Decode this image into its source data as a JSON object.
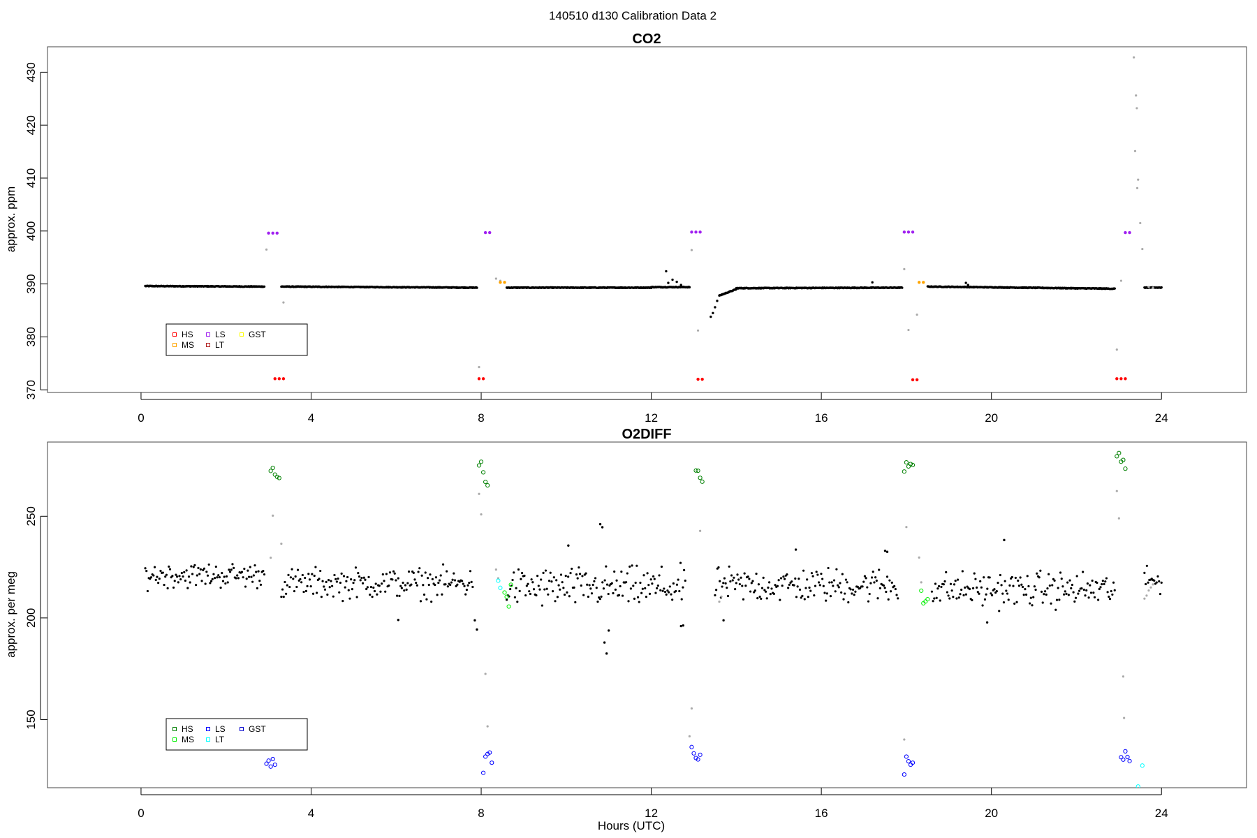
{
  "figure": {
    "suptitle": "140510   d130   Calibration Data 2"
  },
  "colors": {
    "ambient": "#000000",
    "flag": "#aaaaaa",
    "co2_HS": "#ff0000",
    "co2_MS": "#ffa500",
    "co2_LS": "#a020f0",
    "co2_LT": "#b22222",
    "co2_GST": "#ffff00",
    "o2_HS": "#008000",
    "o2_MS": "#00ee00",
    "o2_LS": "#0000ff",
    "o2_LT": "#00ffff",
    "o2_GST": "#0000cd"
  },
  "chart_data": [
    {
      "type": "scatter",
      "title": "CO2",
      "ylabel": "approx. ppm",
      "xlabel": "",
      "xlim": [
        -2.2,
        26.0
      ],
      "ylim": [
        369.5,
        434.8
      ],
      "xticks": [
        0,
        4,
        8,
        12,
        16,
        20,
        24
      ],
      "yticks": [
        370,
        380,
        390,
        400,
        410,
        420,
        430
      ],
      "grid": false,
      "legend": {
        "placement": "bottom-left",
        "entries": [
          {
            "label": "HS",
            "color": "#ff0000"
          },
          {
            "label": "MS",
            "color": "#ffa500"
          },
          {
            "label": "LS",
            "color": "#a020f0"
          },
          {
            "label": "LT",
            "color": "#b22222"
          },
          {
            "label": "GST",
            "color": "#ffff00"
          }
        ]
      },
      "ambient_segments": [
        {
          "x": [
            0.1,
            2.9
          ],
          "y": [
            389.6,
            389.5
          ]
        },
        {
          "x": [
            3.3,
            7.9
          ],
          "y": [
            389.5,
            389.3
          ]
        },
        {
          "x": [
            8.6,
            12.0
          ],
          "y": [
            389.3,
            389.3
          ]
        },
        {
          "x": [
            12.0,
            12.9
          ],
          "y": [
            389.4,
            389.4
          ]
        },
        {
          "x": [
            13.6,
            14.0
          ],
          "y": [
            387.8,
            389.0
          ]
        },
        {
          "x": [
            14.0,
            17.9
          ],
          "y": [
            389.2,
            389.3
          ]
        },
        {
          "x": [
            18.5,
            22.9
          ],
          "y": [
            389.5,
            389.1
          ]
        },
        {
          "x": [
            23.6,
            24.0
          ],
          "y": [
            389.3,
            389.3
          ]
        }
      ],
      "ambient_points": [
        {
          "x": 12.35,
          "y": 392.4
        },
        {
          "x": 12.4,
          "y": 390.2
        },
        {
          "x": 12.5,
          "y": 390.8
        },
        {
          "x": 12.6,
          "y": 390.4
        },
        {
          "x": 12.7,
          "y": 389.8
        },
        {
          "x": 17.2,
          "y": 390.3
        },
        {
          "x": 19.4,
          "y": 390.2
        },
        {
          "x": 19.45,
          "y": 389.8
        },
        {
          "x": 13.4,
          "y": 383.8
        },
        {
          "x": 13.45,
          "y": 384.5
        },
        {
          "x": 13.5,
          "y": 385.6
        },
        {
          "x": 13.55,
          "y": 386.8
        }
      ],
      "flag_points": [
        {
          "x": 2.95,
          "y": 396.5
        },
        {
          "x": 3.35,
          "y": 386.5
        },
        {
          "x": 7.95,
          "y": 374.3
        },
        {
          "x": 8.35,
          "y": 391.0
        },
        {
          "x": 8.45,
          "y": 390.6
        },
        {
          "x": 12.95,
          "y": 396.4
        },
        {
          "x": 13.1,
          "y": 381.2
        },
        {
          "x": 17.95,
          "y": 392.8
        },
        {
          "x": 18.05,
          "y": 381.3
        },
        {
          "x": 18.25,
          "y": 384.2
        },
        {
          "x": 22.95,
          "y": 377.6
        },
        {
          "x": 23.05,
          "y": 390.6
        },
        {
          "x": 23.35,
          "y": 432.8
        },
        {
          "x": 23.4,
          "y": 425.6
        },
        {
          "x": 23.42,
          "y": 423.2
        },
        {
          "x": 23.38,
          "y": 415.1
        },
        {
          "x": 23.45,
          "y": 409.7
        },
        {
          "x": 23.43,
          "y": 408.1
        },
        {
          "x": 23.5,
          "y": 401.5
        },
        {
          "x": 23.55,
          "y": 396.6
        },
        {
          "x": 23.7,
          "y": 389.4
        },
        {
          "x": 23.8,
          "y": 389.3
        }
      ],
      "calibration_series": [
        {
          "name": "LS",
          "color": "#a020f0",
          "points": [
            {
              "x": 3.0,
              "y": 399.6
            },
            {
              "x": 3.1,
              "y": 399.6
            },
            {
              "x": 3.2,
              "y": 399.6
            },
            {
              "x": 8.1,
              "y": 399.7
            },
            {
              "x": 8.2,
              "y": 399.7
            },
            {
              "x": 12.95,
              "y": 399.8
            },
            {
              "x": 13.05,
              "y": 399.8
            },
            {
              "x": 13.15,
              "y": 399.8
            },
            {
              "x": 17.95,
              "y": 399.8
            },
            {
              "x": 18.05,
              "y": 399.8
            },
            {
              "x": 18.15,
              "y": 399.8
            },
            {
              "x": 23.15,
              "y": 399.7
            },
            {
              "x": 23.25,
              "y": 399.7
            }
          ]
        },
        {
          "name": "HS",
          "color": "#ff0000",
          "points": [
            {
              "x": 3.15,
              "y": 372.1
            },
            {
              "x": 3.25,
              "y": 372.1
            },
            {
              "x": 3.35,
              "y": 372.1
            },
            {
              "x": 7.95,
              "y": 372.1
            },
            {
              "x": 8.05,
              "y": 372.1
            },
            {
              "x": 13.1,
              "y": 372.0
            },
            {
              "x": 13.2,
              "y": 372.0
            },
            {
              "x": 18.15,
              "y": 371.9
            },
            {
              "x": 18.25,
              "y": 371.9
            },
            {
              "x": 22.95,
              "y": 372.1
            },
            {
              "x": 23.05,
              "y": 372.1
            },
            {
              "x": 23.15,
              "y": 372.1
            }
          ]
        },
        {
          "name": "MS",
          "color": "#ffa500",
          "points": [
            {
              "x": 8.45,
              "y": 390.3
            },
            {
              "x": 8.55,
              "y": 390.3
            },
            {
              "x": 18.3,
              "y": 390.3
            },
            {
              "x": 18.4,
              "y": 390.3
            }
          ]
        }
      ]
    },
    {
      "type": "scatter",
      "title": "O2DIFF",
      "ylabel": "approx. per meg",
      "xlabel": "Hours (UTC)",
      "xlim": [
        -2.2,
        26.0
      ],
      "ylim": [
        116.5,
        286.5
      ],
      "xticks": [
        0,
        4,
        8,
        12,
        16,
        20,
        24
      ],
      "yticks": [
        150,
        200,
        250
      ],
      "grid": false,
      "legend": {
        "placement": "bottom-left",
        "entries": [
          {
            "label": "HS",
            "color": "#008000"
          },
          {
            "label": "MS",
            "color": "#00ee00"
          },
          {
            "label": "LS",
            "color": "#0000ff"
          },
          {
            "label": "LT",
            "color": "#00ffff"
          },
          {
            "label": "GST",
            "color": "#0000cd"
          }
        ]
      },
      "ambient_windows": [
        {
          "x": [
            0.1,
            2.9
          ],
          "mean": 221,
          "spread": 5
        },
        {
          "x": [
            3.3,
            7.8
          ],
          "mean": 217,
          "spread": 6
        },
        {
          "x": [
            8.6,
            12.8
          ],
          "mean": 215,
          "spread": 8
        },
        {
          "x": [
            13.5,
            17.8
          ],
          "mean": 216,
          "spread": 7
        },
        {
          "x": [
            18.6,
            22.9
          ],
          "mean": 214,
          "spread": 7
        },
        {
          "x": [
            23.6,
            24.0
          ],
          "mean": 218,
          "spread": 5
        }
      ],
      "ambient_outliers": [
        {
          "x": 7.9,
          "y": 194.3
        },
        {
          "x": 7.85,
          "y": 198.8
        },
        {
          "x": 6.05,
          "y": 199.0
        },
        {
          "x": 10.05,
          "y": 235.6
        },
        {
          "x": 10.8,
          "y": 246.1
        },
        {
          "x": 10.85,
          "y": 244.6
        },
        {
          "x": 10.9,
          "y": 187.9
        },
        {
          "x": 10.95,
          "y": 182.5
        },
        {
          "x": 11.0,
          "y": 193.8
        },
        {
          "x": 13.7,
          "y": 198.8
        },
        {
          "x": 15.4,
          "y": 233.6
        },
        {
          "x": 17.5,
          "y": 233.0
        },
        {
          "x": 17.55,
          "y": 232.5
        },
        {
          "x": 20.3,
          "y": 238.3
        },
        {
          "x": 19.9,
          "y": 197.8
        },
        {
          "x": 12.7,
          "y": 196.0
        },
        {
          "x": 12.75,
          "y": 196.3
        }
      ],
      "flag_points": [
        {
          "x": 3.05,
          "y": 229.6
        },
        {
          "x": 3.1,
          "y": 250.3
        },
        {
          "x": 3.3,
          "y": 236.5
        },
        {
          "x": 8.0,
          "y": 250.9
        },
        {
          "x": 7.95,
          "y": 261.0
        },
        {
          "x": 8.1,
          "y": 172.5
        },
        {
          "x": 8.15,
          "y": 146.7
        },
        {
          "x": 8.35,
          "y": 223.8
        },
        {
          "x": 8.4,
          "y": 219.5
        },
        {
          "x": 12.95,
          "y": 155.5
        },
        {
          "x": 12.9,
          "y": 141.8
        },
        {
          "x": 13.15,
          "y": 242.8
        },
        {
          "x": 13.6,
          "y": 208.0
        },
        {
          "x": 13.65,
          "y": 210.5
        },
        {
          "x": 17.95,
          "y": 140.2
        },
        {
          "x": 18.0,
          "y": 244.7
        },
        {
          "x": 18.3,
          "y": 229.7
        },
        {
          "x": 18.35,
          "y": 217.5
        },
        {
          "x": 22.95,
          "y": 262.4
        },
        {
          "x": 23.0,
          "y": 249.0
        },
        {
          "x": 23.1,
          "y": 171.2
        },
        {
          "x": 23.12,
          "y": 150.8
        },
        {
          "x": 23.6,
          "y": 209.5
        },
        {
          "x": 23.65,
          "y": 211.0
        },
        {
          "x": 23.7,
          "y": 213.5
        },
        {
          "x": 23.75,
          "y": 215.0
        },
        {
          "x": 23.8,
          "y": 216.5
        }
      ],
      "calibration_series": [
        {
          "name": "HS",
          "color": "#008000",
          "points": [
            {
              "x": 3.05,
              "y": 272.3
            },
            {
              "x": 3.1,
              "y": 273.8
            },
            {
              "x": 3.15,
              "y": 270.5
            },
            {
              "x": 3.2,
              "y": 269.4
            },
            {
              "x": 3.25,
              "y": 268.8
            },
            {
              "x": 7.95,
              "y": 275.0
            },
            {
              "x": 8.0,
              "y": 276.8
            },
            {
              "x": 8.05,
              "y": 271.6
            },
            {
              "x": 8.1,
              "y": 266.9
            },
            {
              "x": 8.15,
              "y": 265.2
            },
            {
              "x": 13.05,
              "y": 272.5
            },
            {
              "x": 13.1,
              "y": 272.4
            },
            {
              "x": 13.15,
              "y": 268.9
            },
            {
              "x": 13.2,
              "y": 267.0
            },
            {
              "x": 17.95,
              "y": 272.0
            },
            {
              "x": 18.0,
              "y": 276.5
            },
            {
              "x": 18.05,
              "y": 274.5
            },
            {
              "x": 18.1,
              "y": 275.7
            },
            {
              "x": 18.15,
              "y": 275.2
            },
            {
              "x": 22.95,
              "y": 279.5
            },
            {
              "x": 23.0,
              "y": 281.1
            },
            {
              "x": 23.05,
              "y": 276.8
            },
            {
              "x": 23.1,
              "y": 277.7
            },
            {
              "x": 23.15,
              "y": 273.4
            }
          ]
        },
        {
          "name": "MS",
          "color": "#00ee00",
          "points": [
            {
              "x": 8.55,
              "y": 212.5
            },
            {
              "x": 8.6,
              "y": 210.4
            },
            {
              "x": 8.65,
              "y": 205.6
            },
            {
              "x": 8.7,
              "y": 216.3
            },
            {
              "x": 18.35,
              "y": 213.4
            },
            {
              "x": 18.4,
              "y": 207.2
            },
            {
              "x": 18.45,
              "y": 208.1
            },
            {
              "x": 18.5,
              "y": 209.2
            }
          ]
        },
        {
          "name": "LS",
          "color": "#0000ff",
          "points": [
            {
              "x": 2.95,
              "y": 128.3
            },
            {
              "x": 3.0,
              "y": 129.8
            },
            {
              "x": 3.05,
              "y": 126.9
            },
            {
              "x": 3.1,
              "y": 130.6
            },
            {
              "x": 3.15,
              "y": 127.8
            },
            {
              "x": 8.05,
              "y": 123.8
            },
            {
              "x": 8.1,
              "y": 131.8
            },
            {
              "x": 8.15,
              "y": 133.1
            },
            {
              "x": 8.2,
              "y": 133.8
            },
            {
              "x": 8.25,
              "y": 128.8
            },
            {
              "x": 12.95,
              "y": 136.5
            },
            {
              "x": 13.0,
              "y": 133.4
            },
            {
              "x": 13.05,
              "y": 131.1
            },
            {
              "x": 13.1,
              "y": 130.4
            },
            {
              "x": 13.15,
              "y": 132.7
            },
            {
              "x": 17.95,
              "y": 123.0
            },
            {
              "x": 18.0,
              "y": 131.8
            },
            {
              "x": 18.05,
              "y": 129.5
            },
            {
              "x": 18.1,
              "y": 127.8
            },
            {
              "x": 18.15,
              "y": 128.8
            },
            {
              "x": 23.05,
              "y": 131.5
            },
            {
              "x": 23.1,
              "y": 130.3
            },
            {
              "x": 23.15,
              "y": 134.4
            },
            {
              "x": 23.2,
              "y": 131.6
            },
            {
              "x": 23.25,
              "y": 129.6
            }
          ]
        },
        {
          "name": "LT",
          "color": "#00ffff",
          "points": [
            {
              "x": 8.4,
              "y": 218.3
            },
            {
              "x": 8.45,
              "y": 214.8
            },
            {
              "x": 23.55,
              "y": 127.4
            },
            {
              "x": 23.45,
              "y": 117.1
            }
          ]
        }
      ]
    }
  ]
}
